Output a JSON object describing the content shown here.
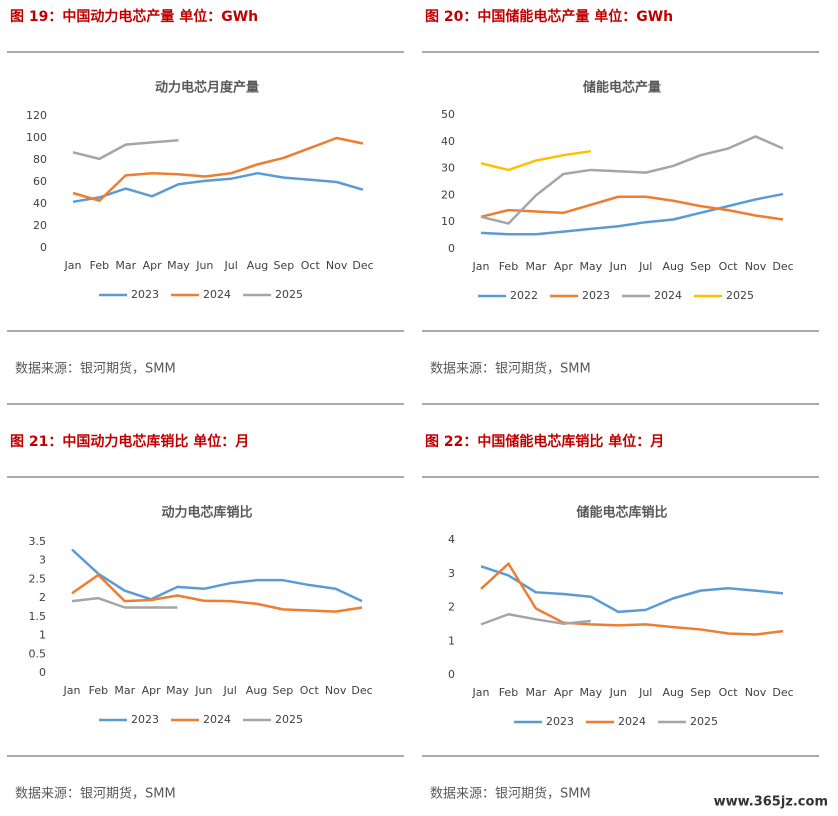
{
  "watermark": "www.365jz.com",
  "chart_data": [
    {
      "type": "line",
      "caption": "图 19：中国动力电芯产量   单位：GWh",
      "title": "动力电芯月度产量",
      "source": "数据来源：银河期货，SMM",
      "categories": [
        "Jan",
        "Feb",
        "Mar",
        "Apr",
        "May",
        "Jun",
        "Jul",
        "Aug",
        "Sep",
        "Oct",
        "Nov",
        "Dec"
      ],
      "ylim": [
        0,
        120
      ],
      "yticks": [
        0,
        20,
        40,
        60,
        80,
        100,
        120
      ],
      "grid": false,
      "series": [
        {
          "name": "2023",
          "color": "#5b9bd5",
          "values": [
            42,
            46,
            54,
            47,
            58,
            61,
            63,
            68,
            64,
            62,
            60,
            53
          ]
        },
        {
          "name": "2024",
          "color": "#ed7d31",
          "values": [
            50,
            43,
            66,
            68,
            67,
            65,
            68,
            76,
            82,
            91,
            100,
            95
          ]
        },
        {
          "name": "2025",
          "color": "#a5a5a5",
          "values": [
            87,
            81,
            94,
            96,
            98,
            null,
            null,
            null,
            null,
            null,
            null,
            null
          ]
        }
      ]
    },
    {
      "type": "line",
      "caption": "图 20：中国储能电芯产量   单位：GWh",
      "title": "储能电芯产量",
      "source": "数据来源：银河期货，SMM",
      "categories": [
        "Jan",
        "Feb",
        "Mar",
        "Apr",
        "May",
        "Jun",
        "Jul",
        "Aug",
        "Sep",
        "Oct",
        "Nov",
        "Dec"
      ],
      "ylim": [
        0,
        50
      ],
      "yticks": [
        0,
        10,
        20,
        30,
        40,
        50
      ],
      "grid": false,
      "series": [
        {
          "name": "2022",
          "color": "#5b9bd5",
          "values": [
            6,
            5.5,
            5.5,
            6.5,
            7.5,
            8.5,
            10,
            11,
            13.5,
            16,
            18.5,
            20.5
          ]
        },
        {
          "name": "2023",
          "color": "#ed7d31",
          "values": [
            12,
            14.5,
            14,
            13.5,
            16.5,
            19.5,
            19.5,
            18,
            16,
            14.5,
            12.5,
            11
          ]
        },
        {
          "name": "2024",
          "color": "#a5a5a5",
          "values": [
            12,
            9.5,
            20,
            28,
            29.5,
            29,
            28.5,
            31,
            35,
            37.5,
            42,
            37.5
          ]
        },
        {
          "name": "2025",
          "color": "#ffc000",
          "values": [
            32,
            29.5,
            33,
            35,
            36.5,
            null,
            null,
            null,
            null,
            null,
            null,
            null
          ]
        }
      ]
    },
    {
      "type": "line",
      "caption": "图 21：中国动力电芯库销比   单位：月",
      "title": "动力电芯库销比",
      "source": "数据来源：银河期货，SMM",
      "categories": [
        "Jan",
        "Feb",
        "Mar",
        "Apr",
        "May",
        "Jun",
        "Jul",
        "Aug",
        "Sep",
        "Oct",
        "Nov",
        "Dec"
      ],
      "ylim": [
        0,
        3.5
      ],
      "yticks": [
        0,
        0.5,
        1,
        1.5,
        2,
        2.5,
        3,
        3.5
      ],
      "grid": false,
      "series": [
        {
          "name": "2023",
          "color": "#5b9bd5",
          "values": [
            3.3,
            2.65,
            2.2,
            1.97,
            2.3,
            2.25,
            2.4,
            2.48,
            2.48,
            2.35,
            2.25,
            1.92
          ]
        },
        {
          "name": "2024",
          "color": "#ed7d31",
          "values": [
            2.13,
            2.62,
            1.92,
            1.95,
            2.07,
            1.93,
            1.92,
            1.85,
            1.7,
            1.67,
            1.64,
            1.75
          ]
        },
        {
          "name": "2025",
          "color": "#a5a5a5",
          "values": [
            1.92,
            2.0,
            1.75,
            1.75,
            1.75,
            null,
            null,
            null,
            null,
            null,
            null,
            null
          ]
        }
      ]
    },
    {
      "type": "line",
      "caption": "图 22：中国储能电芯库销比   单位：月",
      "title": "储能电芯库销比",
      "source": "数据来源：银河期货，SMM",
      "categories": [
        "Jan",
        "Feb",
        "Mar",
        "Apr",
        "May",
        "Jun",
        "Jul",
        "Aug",
        "Sep",
        "Oct",
        "Nov",
        "Dec"
      ],
      "ylim": [
        0,
        4
      ],
      "yticks": [
        0,
        1,
        2,
        3,
        4
      ],
      "grid": false,
      "series": [
        {
          "name": "2023",
          "color": "#5b9bd5",
          "values": [
            3.22,
            2.95,
            2.45,
            2.4,
            2.32,
            1.87,
            1.93,
            2.27,
            2.5,
            2.57,
            2.5,
            2.42
          ]
        },
        {
          "name": "2024",
          "color": "#ed7d31",
          "values": [
            2.55,
            3.3,
            1.97,
            1.55,
            1.5,
            1.47,
            1.5,
            1.42,
            1.35,
            1.23,
            1.2,
            1.3
          ]
        },
        {
          "name": "2025",
          "color": "#a5a5a5",
          "values": [
            1.5,
            1.8,
            1.65,
            1.52,
            1.6,
            null,
            null,
            null,
            null,
            null,
            null,
            null
          ]
        }
      ]
    }
  ]
}
